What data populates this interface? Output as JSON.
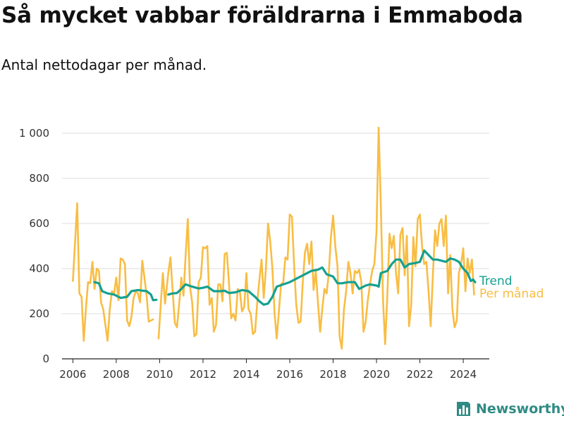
{
  "title": "Så mycket vabbar föräldrarna i Emmaboda",
  "subtitle": "Antal nettodagar per månad.",
  "brand": {
    "name": "Newsworthy",
    "icon": "bar-chart-logo-icon",
    "color": "#2e8b84"
  },
  "chart_data": {
    "type": "line",
    "title": "Så mycket vabbar föräldrarna i Emmaboda",
    "subtitle": "Antal nettodagar per månad.",
    "xlabel": "",
    "ylabel": "",
    "xlim": [
      2005.5,
      2025.2
    ],
    "ylim": [
      0,
      1000
    ],
    "x_ticks": [
      2006,
      2008,
      2010,
      2012,
      2014,
      2016,
      2018,
      2020,
      2022,
      2024
    ],
    "x_tick_labels": [
      "2006",
      "2008",
      "2010",
      "2012",
      "2014",
      "2016",
      "2018",
      "2020",
      "2022",
      "2024"
    ],
    "y_ticks": [
      0,
      200,
      400,
      600,
      800,
      1000
    ],
    "y_tick_labels": [
      "0",
      "200",
      "400",
      "600",
      "800",
      "1 000"
    ],
    "grid": true,
    "legend_placement": "right, at end of lines",
    "series": [
      {
        "name": "Trend",
        "color": "#16a08f",
        "points": [
          [
            2007.0,
            340
          ],
          [
            2007.2,
            335
          ],
          [
            2007.35,
            300
          ],
          [
            2007.6,
            290
          ],
          [
            2007.9,
            285
          ],
          [
            2008.2,
            270
          ],
          [
            2008.5,
            275
          ],
          [
            2008.7,
            300
          ],
          [
            2009.0,
            305
          ],
          [
            2009.4,
            300
          ],
          [
            2009.6,
            285
          ],
          [
            2009.7,
            260
          ],
          [
            2009.85,
            262
          ],
          null,
          [
            2010.4,
            285
          ],
          [
            2010.6,
            290
          ],
          [
            2010.8,
            292
          ],
          [
            2011.0,
            310
          ],
          [
            2011.2,
            330
          ],
          [
            2011.5,
            320
          ],
          [
            2011.8,
            312
          ],
          [
            2012.0,
            315
          ],
          [
            2012.2,
            320
          ],
          [
            2012.5,
            300
          ],
          [
            2012.8,
            300
          ],
          [
            2013.0,
            302
          ],
          [
            2013.2,
            292
          ],
          [
            2013.5,
            295
          ],
          [
            2013.8,
            305
          ],
          [
            2014.1,
            300
          ],
          [
            2014.4,
            275
          ],
          [
            2014.6,
            255
          ],
          [
            2014.8,
            240
          ],
          [
            2015.0,
            245
          ],
          [
            2015.2,
            275
          ],
          [
            2015.4,
            320
          ],
          [
            2015.7,
            330
          ],
          [
            2016.0,
            340
          ],
          [
            2016.2,
            350
          ],
          [
            2016.5,
            365
          ],
          [
            2016.8,
            380
          ],
          [
            2017.0,
            390
          ],
          [
            2017.3,
            395
          ],
          [
            2017.5,
            405
          ],
          [
            2017.7,
            375
          ],
          [
            2018.0,
            365
          ],
          [
            2018.2,
            335
          ],
          [
            2018.4,
            335
          ],
          [
            2018.7,
            340
          ],
          [
            2019.0,
            340
          ],
          [
            2019.2,
            310
          ],
          [
            2019.5,
            325
          ],
          [
            2019.7,
            330
          ],
          [
            2020.0,
            325
          ],
          [
            2020.1,
            320
          ],
          [
            2020.2,
            380
          ],
          [
            2020.5,
            390
          ],
          [
            2020.7,
            420
          ],
          [
            2020.9,
            440
          ],
          [
            2021.1,
            440
          ],
          [
            2021.3,
            405
          ],
          [
            2021.5,
            420
          ],
          [
            2021.8,
            425
          ],
          [
            2022.0,
            430
          ],
          [
            2022.2,
            480
          ],
          [
            2022.4,
            460
          ],
          [
            2022.6,
            440
          ],
          [
            2022.8,
            440
          ],
          [
            2023.0,
            435
          ],
          [
            2023.2,
            430
          ],
          [
            2023.4,
            445
          ],
          [
            2023.6,
            440
          ],
          [
            2023.8,
            430
          ],
          [
            2024.0,
            400
          ],
          [
            2024.2,
            380
          ],
          [
            2024.35,
            345
          ],
          [
            2024.45,
            352
          ],
          [
            2024.55,
            340
          ]
        ]
      },
      {
        "name": "Per månad",
        "color": "#f8bd44",
        "points": [
          [
            2006.0,
            345
          ],
          [
            2006.1,
            520
          ],
          [
            2006.2,
            690
          ],
          [
            2006.3,
            290
          ],
          [
            2006.4,
            275
          ],
          [
            2006.5,
            80
          ],
          [
            2006.6,
            220
          ],
          [
            2006.7,
            340
          ],
          [
            2006.8,
            335
          ],
          [
            2006.9,
            430
          ],
          [
            2007.0,
            310
          ],
          [
            2007.1,
            400
          ],
          [
            2007.2,
            390
          ],
          [
            2007.3,
            250
          ],
          [
            2007.4,
            220
          ],
          [
            2007.5,
            150
          ],
          [
            2007.6,
            80
          ],
          [
            2007.7,
            220
          ],
          [
            2007.8,
            300
          ],
          [
            2007.9,
            290
          ],
          [
            2008.0,
            360
          ],
          [
            2008.1,
            260
          ],
          [
            2008.2,
            445
          ],
          [
            2008.3,
            440
          ],
          [
            2008.4,
            420
          ],
          [
            2008.5,
            170
          ],
          [
            2008.6,
            145
          ],
          [
            2008.7,
            185
          ],
          [
            2008.8,
            270
          ],
          [
            2008.9,
            300
          ],
          [
            2009.0,
            290
          ],
          [
            2009.1,
            250
          ],
          [
            2009.2,
            435
          ],
          [
            2009.3,
            360
          ],
          [
            2009.4,
            280
          ],
          [
            2009.5,
            165
          ],
          [
            2009.6,
            170
          ],
          [
            2009.7,
            175
          ],
          null,
          [
            2009.95,
            90
          ],
          [
            2010.05,
            240
          ],
          [
            2010.15,
            380
          ],
          [
            2010.25,
            245
          ],
          [
            2010.4,
            380
          ],
          [
            2010.5,
            450
          ],
          [
            2010.6,
            300
          ],
          [
            2010.7,
            160
          ],
          [
            2010.8,
            140
          ],
          [
            2010.9,
            240
          ],
          [
            2011.0,
            360
          ],
          [
            2011.1,
            280
          ],
          [
            2011.2,
            460
          ],
          [
            2011.3,
            620
          ],
          [
            2011.4,
            320
          ],
          [
            2011.5,
            250
          ],
          [
            2011.6,
            100
          ],
          [
            2011.7,
            110
          ],
          [
            2011.8,
            340
          ],
          [
            2011.9,
            360
          ],
          [
            2012.0,
            495
          ],
          [
            2012.1,
            490
          ],
          [
            2012.2,
            500
          ],
          [
            2012.3,
            240
          ],
          [
            2012.4,
            270
          ],
          [
            2012.5,
            120
          ],
          [
            2012.6,
            150
          ],
          [
            2012.7,
            330
          ],
          [
            2012.8,
            330
          ],
          [
            2012.9,
            255
          ],
          [
            2013.0,
            465
          ],
          [
            2013.1,
            470
          ],
          [
            2013.2,
            330
          ],
          [
            2013.3,
            180
          ],
          [
            2013.4,
            200
          ],
          [
            2013.5,
            170
          ],
          [
            2013.6,
            310
          ],
          [
            2013.7,
            300
          ],
          [
            2013.8,
            210
          ],
          [
            2013.9,
            230
          ],
          [
            2014.0,
            380
          ],
          [
            2014.1,
            220
          ],
          [
            2014.2,
            200
          ],
          [
            2014.3,
            110
          ],
          [
            2014.4,
            120
          ],
          [
            2014.5,
            250
          ],
          [
            2014.6,
            350
          ],
          [
            2014.7,
            440
          ],
          [
            2014.8,
            270
          ],
          [
            2014.9,
            400
          ],
          [
            2015.0,
            600
          ],
          [
            2015.1,
            520
          ],
          [
            2015.2,
            400
          ],
          [
            2015.3,
            200
          ],
          [
            2015.4,
            90
          ],
          [
            2015.5,
            210
          ],
          [
            2015.6,
            330
          ],
          [
            2015.7,
            340
          ],
          [
            2015.8,
            450
          ],
          [
            2015.9,
            440
          ],
          [
            2016.0,
            640
          ],
          [
            2016.1,
            630
          ],
          [
            2016.2,
            420
          ],
          [
            2016.3,
            240
          ],
          [
            2016.4,
            160
          ],
          [
            2016.5,
            165
          ],
          [
            2016.6,
            340
          ],
          [
            2016.7,
            470
          ],
          [
            2016.8,
            510
          ],
          [
            2016.9,
            420
          ],
          [
            2017.0,
            520
          ],
          [
            2017.1,
            305
          ],
          [
            2017.2,
            390
          ],
          [
            2017.3,
            250
          ],
          [
            2017.4,
            120
          ],
          [
            2017.5,
            220
          ],
          [
            2017.6,
            310
          ],
          [
            2017.7,
            290
          ],
          [
            2017.8,
            380
          ],
          [
            2017.9,
            540
          ],
          [
            2018.0,
            635
          ],
          [
            2018.1,
            500
          ],
          [
            2018.2,
            410
          ],
          [
            2018.3,
            100
          ],
          [
            2018.4,
            45
          ],
          [
            2018.5,
            220
          ],
          [
            2018.6,
            300
          ],
          [
            2018.7,
            430
          ],
          [
            2018.8,
            380
          ],
          [
            2018.9,
            290
          ],
          [
            2019.0,
            390
          ],
          [
            2019.1,
            380
          ],
          [
            2019.2,
            395
          ],
          [
            2019.3,
            340
          ],
          [
            2019.4,
            120
          ],
          [
            2019.5,
            165
          ],
          [
            2019.6,
            260
          ],
          [
            2019.7,
            330
          ],
          [
            2019.8,
            390
          ],
          [
            2019.9,
            420
          ],
          [
            2020.0,
            560
          ],
          [
            2020.1,
            1025
          ],
          [
            2020.2,
            680
          ],
          [
            2020.3,
            260
          ],
          [
            2020.4,
            65
          ],
          [
            2020.5,
            280
          ],
          [
            2020.6,
            555
          ],
          [
            2020.7,
            490
          ],
          [
            2020.8,
            545
          ],
          [
            2020.9,
            380
          ],
          [
            2021.0,
            290
          ],
          [
            2021.1,
            550
          ],
          [
            2021.2,
            580
          ],
          [
            2021.3,
            370
          ],
          [
            2021.4,
            545
          ],
          [
            2021.5,
            145
          ],
          [
            2021.6,
            240
          ],
          [
            2021.7,
            540
          ],
          [
            2021.8,
            410
          ],
          [
            2021.9,
            620
          ],
          [
            2022.0,
            640
          ],
          [
            2022.1,
            500
          ],
          [
            2022.2,
            420
          ],
          [
            2022.3,
            430
          ],
          [
            2022.4,
            300
          ],
          [
            2022.5,
            145
          ],
          [
            2022.6,
            370
          ],
          [
            2022.7,
            570
          ],
          [
            2022.8,
            500
          ],
          [
            2022.9,
            600
          ],
          [
            2023.0,
            620
          ],
          [
            2023.1,
            500
          ],
          [
            2023.2,
            635
          ],
          [
            2023.3,
            290
          ],
          [
            2023.4,
            460
          ],
          [
            2023.5,
            220
          ],
          [
            2023.6,
            140
          ],
          [
            2023.7,
            170
          ],
          [
            2023.8,
            380
          ],
          [
            2023.9,
            420
          ],
          [
            2024.0,
            490
          ],
          [
            2024.1,
            300
          ],
          [
            2024.2,
            445
          ],
          [
            2024.3,
            380
          ],
          [
            2024.4,
            440
          ],
          [
            2024.5,
            285
          ]
        ]
      }
    ]
  }
}
